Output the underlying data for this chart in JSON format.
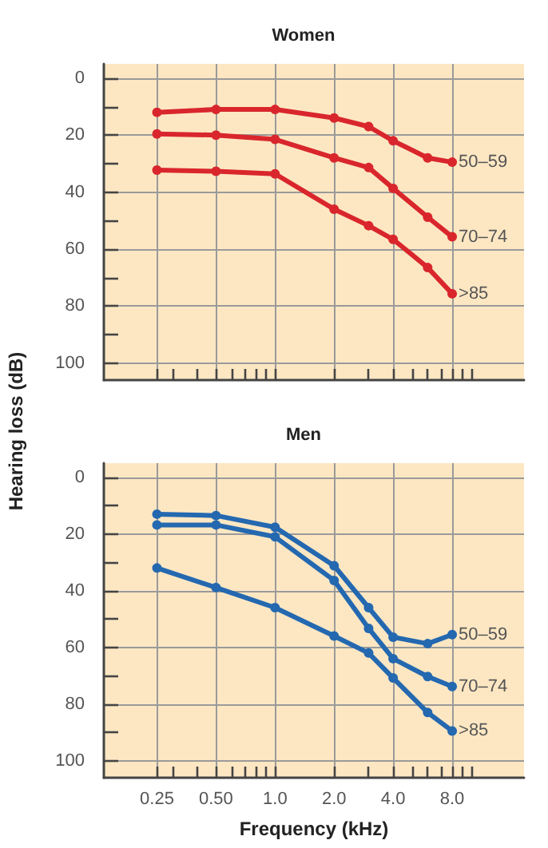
{
  "chart_data": [
    {
      "type": "line",
      "title": "Women",
      "ylabel": "Hearing loss (dB)",
      "x": [
        0.25,
        0.5,
        1,
        2,
        3,
        4,
        6,
        8
      ],
      "series": [
        {
          "name": "50–59",
          "color": "#d9262c",
          "values": [
            12,
            11,
            11,
            14,
            17,
            22,
            28,
            29.5
          ]
        },
        {
          "name": "70–74",
          "color": "#d9262c",
          "values": [
            19.6,
            20,
            21.5,
            28,
            31.4,
            38.7,
            48.8,
            55.7
          ]
        },
        {
          "name": ">85",
          "color": "#d9262c",
          "values": [
            32.3,
            32.7,
            33.6,
            46,
            51.8,
            56.6,
            66.5,
            75.7
          ]
        }
      ],
      "log": "x",
      "xlim": [
        0.134,
        18.6
      ],
      "ylim": [
        106,
        -5
      ],
      "xticks": [
        {
          "value": 0.25,
          "label": null
        },
        {
          "value": 0.3,
          "label": null
        },
        {
          "value": 0.4,
          "label": null
        },
        {
          "value": 0.5,
          "label": null
        },
        {
          "value": 0.6,
          "label": null
        },
        {
          "value": 0.7,
          "label": null
        },
        {
          "value": 0.8,
          "label": null
        },
        {
          "value": 0.9,
          "label": null
        },
        {
          "value": 1,
          "label": null
        },
        {
          "value": 2,
          "label": null
        },
        {
          "value": 3,
          "label": null
        },
        {
          "value": 4,
          "label": null
        },
        {
          "value": 5,
          "label": null
        },
        {
          "value": 6,
          "label": null
        },
        {
          "value": 7,
          "label": null
        },
        {
          "value": 8,
          "label": null
        },
        {
          "value": 9,
          "label": null
        },
        {
          "value": 10,
          "label": null
        }
      ],
      "yticks": [
        0,
        {
          "value": 10,
          "label": null
        },
        20,
        {
          "value": 30,
          "label": null
        },
        40,
        {
          "value": 50,
          "label": null
        },
        60,
        {
          "value": 70,
          "label": null
        },
        80,
        {
          "value": 90,
          "label": null
        },
        100
      ],
      "tick_labels": "y",
      "grid": true,
      "legend": false,
      "marker": "circle",
      "line_style": "solid"
    },
    {
      "type": "line",
      "title": "Men",
      "xlabel": "Frequency (kHz)",
      "x": [
        0.25,
        0.5,
        1,
        2,
        3,
        4,
        6,
        8
      ],
      "series": [
        {
          "name": "50–59",
          "color": "#2468b0",
          "values": [
            13,
            13.5,
            17.6,
            31.2,
            46,
            56.4,
            58.7,
            55.5
          ]
        },
        {
          "name": "70–74",
          "color": "#2468b0",
          "values": [
            16.8,
            16.8,
            21,
            36.4,
            53.3,
            64,
            70.3,
            73.8
          ]
        },
        {
          "name": ">85",
          "color": "#2468b0",
          "values": [
            32,
            38.9,
            46,
            56,
            62,
            70.8,
            83,
            89.5
          ]
        }
      ],
      "log": "x",
      "xlim": [
        0.134,
        18.6
      ],
      "ylim": [
        106,
        -5
      ],
      "xticks": [
        {
          "value": 0.25,
          "label": "0.25"
        },
        {
          "value": 0.3,
          "label": null
        },
        {
          "value": 0.4,
          "label": null
        },
        {
          "value": 0.5,
          "label": "0.50"
        },
        {
          "value": 0.6,
          "label": null
        },
        {
          "value": 0.7,
          "label": null
        },
        {
          "value": 0.8,
          "label": null
        },
        {
          "value": 0.9,
          "label": null
        },
        {
          "value": 1,
          "label": "1.0"
        },
        {
          "value": 2,
          "label": "2.0"
        },
        {
          "value": 3,
          "label": null
        },
        {
          "value": 4,
          "label": "4.0"
        },
        {
          "value": 5,
          "label": null
        },
        {
          "value": 6,
          "label": null
        },
        {
          "value": 7,
          "label": null
        },
        {
          "value": 8,
          "label": "8.0"
        },
        {
          "value": 9,
          "label": null
        },
        {
          "value": 10,
          "label": null
        }
      ],
      "yticks": [
        0,
        {
          "value": 10,
          "label": null
        },
        20,
        {
          "value": 30,
          "label": null
        },
        40,
        {
          "value": 50,
          "label": null
        },
        60,
        {
          "value": 70,
          "label": null
        },
        80,
        {
          "value": 90,
          "label": null
        },
        100
      ],
      "grid": true,
      "legend": false,
      "marker": "circle",
      "line_style": "solid"
    }
  ]
}
